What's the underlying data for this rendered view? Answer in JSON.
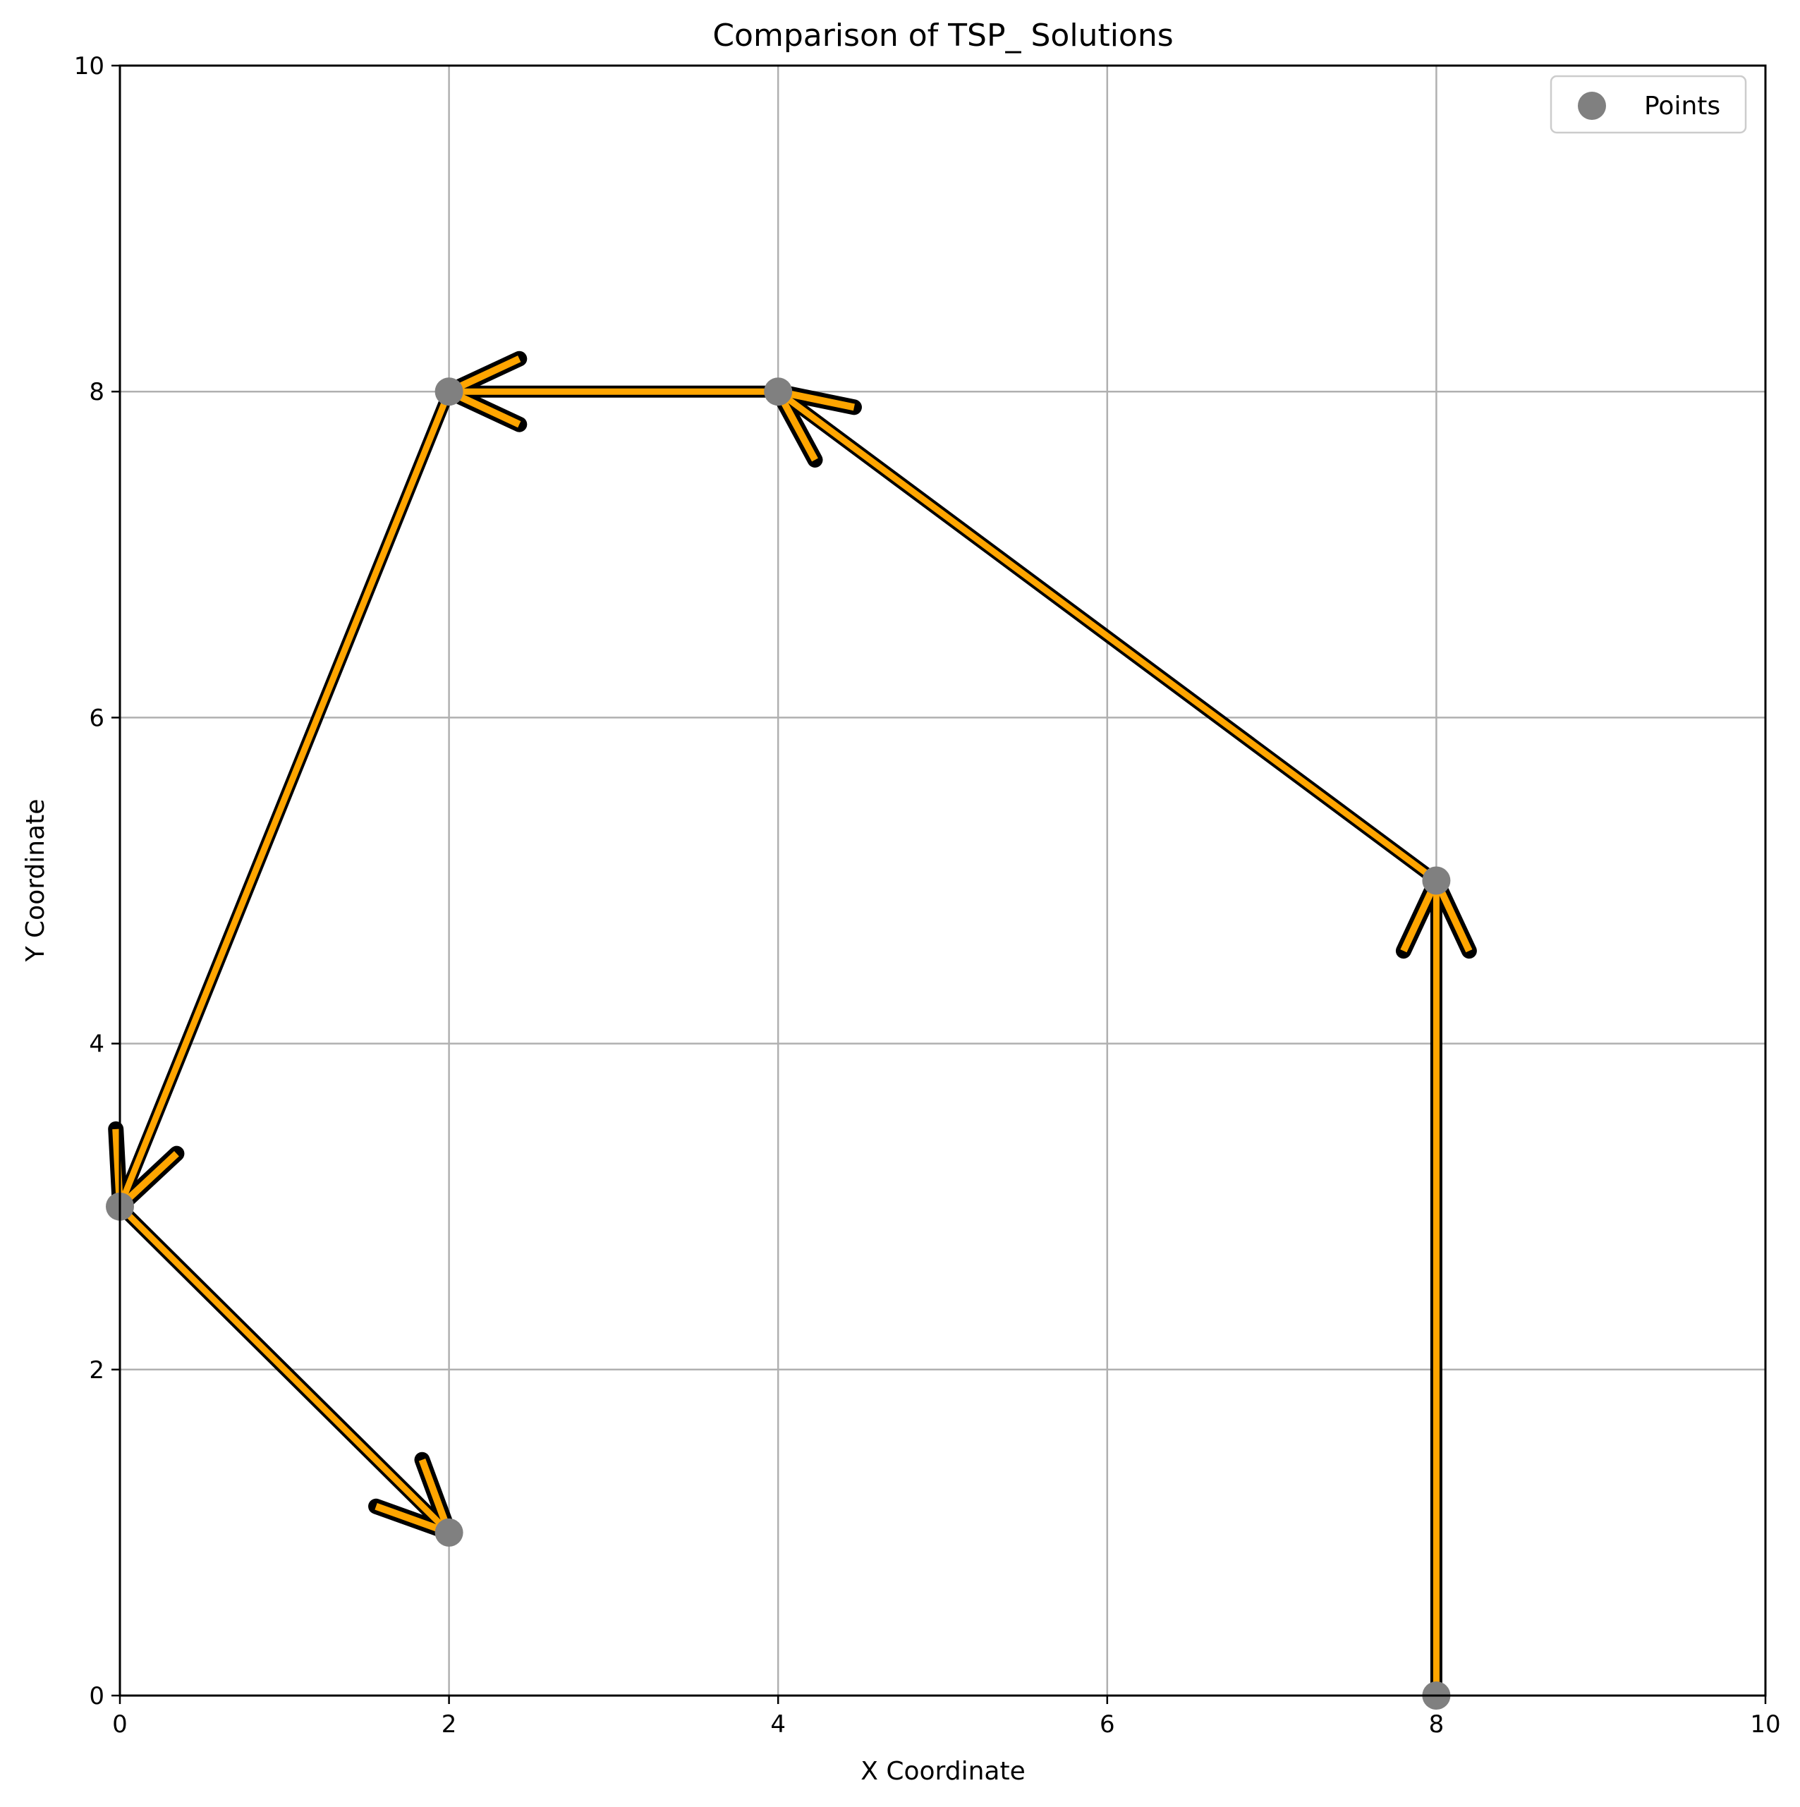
{
  "chart_data": {
    "type": "line",
    "title": "Comparison of TSP_ Solutions",
    "xlabel": "X Coordinate",
    "ylabel": "Y Coordinate",
    "xlim": [
      0,
      10
    ],
    "ylim": [
      0,
      10
    ],
    "grid": true,
    "xticks": [
      "0",
      "2",
      "4",
      "6",
      "8",
      "10"
    ],
    "yticks": [
      "0",
      "2",
      "4",
      "6",
      "8",
      "10"
    ],
    "xtick_values": [
      0,
      2,
      4,
      6,
      8,
      10
    ],
    "ytick_values": [
      0,
      2,
      4,
      6,
      8,
      10
    ],
    "points": [
      {
        "x": 8,
        "y": 0
      },
      {
        "x": 8,
        "y": 5
      },
      {
        "x": 4,
        "y": 8
      },
      {
        "x": 2,
        "y": 8
      },
      {
        "x": 0,
        "y": 3
      },
      {
        "x": 2,
        "y": 1
      }
    ],
    "route": [
      {
        "from": [
          8,
          0
        ],
        "to": [
          8,
          5
        ]
      },
      {
        "from": [
          8,
          5
        ],
        "to": [
          4,
          8
        ]
      },
      {
        "from": [
          4,
          8
        ],
        "to": [
          2,
          8
        ]
      },
      {
        "from": [
          2,
          8
        ],
        "to": [
          0,
          3
        ]
      },
      {
        "from": [
          0,
          3
        ],
        "to": [
          2,
          1
        ]
      }
    ],
    "legend": {
      "position": "top-right",
      "entries": [
        "Points"
      ]
    },
    "colors": {
      "points": "#808080",
      "route_outline": "#000000",
      "route_fill": "#ffa500",
      "grid": "#b0b0b0"
    }
  }
}
